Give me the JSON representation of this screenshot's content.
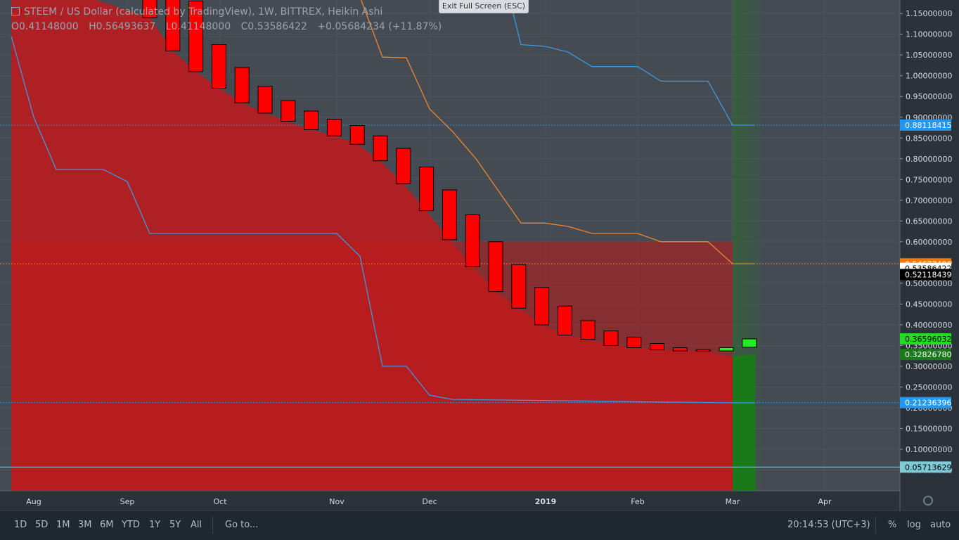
{
  "exit_button": "Exit Full Screen (ESC)",
  "legend": {
    "title": "STEEM / US Dollar (calculated by TradingView), 1W, BITTREX, Heikin Ashi",
    "open": "O0.41148000",
    "high": "H0.56493637",
    "low": "L0.41148000",
    "close": "C0.53586422",
    "change": "+0.05684234 (+11.87%)"
  },
  "ranges": [
    "1D",
    "5D",
    "1M",
    "3M",
    "6M",
    "YTD",
    "1Y",
    "5Y",
    "All"
  ],
  "goto": "Go to...",
  "clock": "20:14:53 (UTC+3)",
  "options": [
    "%",
    "log",
    "auto"
  ],
  "colors": {
    "background": "#444b53",
    "down_candle": "#ff0000",
    "up_candle": "#22ee22",
    "red_fill": "#b81c22",
    "green_fill": "#1b6e1b",
    "orange_line": "#f0862c",
    "blue_line": "#3a9ae0",
    "price_label_blue": "#2196f3",
    "price_label_orange": "#f57c00",
    "price_label_green": "#1f9d1f",
    "price_label_teal": "#7fcbd8"
  },
  "chart_data": {
    "type": "candlestick",
    "style": "Heikin Ashi",
    "x_labels": [
      "Aug",
      "Sep",
      "Oct",
      "Nov",
      "Dec",
      "2019",
      "Feb",
      "Mar",
      "Apr"
    ],
    "y_ticks": [
      "1.15000000",
      "1.10000000",
      "1.05000000",
      "1.00000000",
      "0.95000000",
      "0.90000000",
      "0.85000000",
      "0.80000000",
      "0.75000000",
      "0.70000000",
      "0.65000000",
      "0.60000000",
      "0.55000000",
      "0.50000000",
      "0.45000000",
      "0.40000000",
      "0.35000000",
      "0.30000000",
      "0.25000000",
      "0.20000000",
      "0.15000000",
      "0.10000000",
      "0.05000000"
    ],
    "y_range": [
      0.025,
      1.17
    ],
    "candles": [
      {
        "o": 1.2,
        "c": 1.14,
        "dir": "down"
      },
      {
        "o": 1.26,
        "c": 1.06,
        "dir": "down"
      },
      {
        "o": 1.18,
        "c": 1.01,
        "dir": "down"
      },
      {
        "o": 1.075,
        "c": 0.97,
        "dir": "down"
      },
      {
        "o": 1.02,
        "c": 0.935,
        "dir": "down"
      },
      {
        "o": 0.975,
        "c": 0.91,
        "dir": "down"
      },
      {
        "o": 0.94,
        "c": 0.89,
        "dir": "down"
      },
      {
        "o": 0.915,
        "c": 0.87,
        "dir": "down"
      },
      {
        "o": 0.895,
        "c": 0.855,
        "dir": "down"
      },
      {
        "o": 0.88,
        "c": 0.835,
        "dir": "down"
      },
      {
        "o": 0.855,
        "c": 0.795,
        "dir": "down"
      },
      {
        "o": 0.825,
        "c": 0.74,
        "dir": "down"
      },
      {
        "o": 0.78,
        "c": 0.675,
        "dir": "down"
      },
      {
        "o": 0.725,
        "c": 0.605,
        "dir": "down"
      },
      {
        "o": 0.665,
        "c": 0.54,
        "dir": "down"
      },
      {
        "o": 0.6,
        "c": 0.48,
        "dir": "down"
      },
      {
        "o": 0.545,
        "c": 0.44,
        "dir": "down"
      },
      {
        "o": 0.49,
        "c": 0.4,
        "dir": "down"
      },
      {
        "o": 0.445,
        "c": 0.375,
        "dir": "down"
      },
      {
        "o": 0.41,
        "c": 0.365,
        "dir": "down"
      },
      {
        "o": 0.385,
        "c": 0.35,
        "dir": "down"
      },
      {
        "o": 0.37,
        "c": 0.345,
        "dir": "down"
      },
      {
        "o": 0.355,
        "c": 0.34,
        "dir": "down"
      },
      {
        "o": 0.345,
        "c": 0.337,
        "dir": "down"
      },
      {
        "o": 0.34,
        "c": 0.337,
        "dir": "down"
      },
      {
        "o": 0.337,
        "c": 0.345,
        "dir": "up"
      },
      {
        "o": 0.346,
        "c": 0.366,
        "dir": "up"
      }
    ],
    "orange_line": [
      1.3,
      1.3,
      1.3,
      1.3,
      1.3,
      1.3,
      1.3,
      1.3,
      1.3,
      1.3,
      1.3,
      1.3,
      1.3,
      1.22,
      1.16,
      1.045,
      1.043,
      0.92,
      0.865,
      0.8,
      0.725,
      0.645,
      0.645,
      0.637,
      0.62,
      0.62,
      0.62,
      0.6,
      0.6,
      0.6,
      0.58,
      0.56,
      0.547
    ],
    "blue_upper": [
      1.3,
      1.3,
      1.3,
      1.3,
      1.3,
      1.3,
      1.3,
      1.3,
      1.3,
      1.3,
      1.3,
      1.3,
      1.3,
      1.3,
      1.3,
      1.3,
      1.3,
      1.3,
      1.3,
      1.3,
      1.3,
      1.3,
      1.075,
      1.07,
      1.057,
      1.022,
      1.022,
      1.022,
      0.987,
      0.987,
      0.987,
      0.93,
      0.881
    ],
    "blue_lower": [
      1.095,
      0.9,
      0.774,
      0.774,
      0.774,
      0.745,
      0.62,
      0.62,
      0.62,
      0.62,
      0.62,
      0.62,
      0.62,
      0.62,
      0.62,
      0.565,
      0.3,
      0.3,
      0.23,
      0.22,
      0.212
    ],
    "price_labels": [
      {
        "value": 0.88118415,
        "text": "0.88118415",
        "color": "#2196f3",
        "line": true
      },
      {
        "value": 0.54677406,
        "text": "0.54677406",
        "color": "#f57c00",
        "line": true
      },
      {
        "value": 0.53586422,
        "text": "0.53586422",
        "color": "#ffffff",
        "line": false
      },
      {
        "value": 0.52118439,
        "text": "0.52118439",
        "color": "#000000",
        "line": false
      },
      {
        "value": 0.36596032,
        "text": "0.36596032",
        "color": "#22dd22",
        "line": false
      },
      {
        "value": 0.3282678,
        "text": "0.32826780",
        "color": "#1a7a1a",
        "line": false
      },
      {
        "value": 0.21236396,
        "text": "0.21236396",
        "color": "#2196f3",
        "line": true
      },
      {
        "value": 0.05713629,
        "text": "0.05713629",
        "color": "#7fcbd8",
        "line": true
      }
    ]
  }
}
